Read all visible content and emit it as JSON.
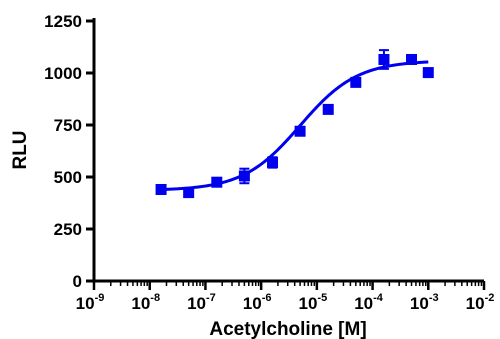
{
  "chart_data": {
    "type": "scatter",
    "xlabel": "Acetylcholine [M]",
    "ylabel": "RLU",
    "xscale": "log",
    "xlim": [
      1e-09,
      0.01
    ],
    "ylim": [
      0,
      1250
    ],
    "x_ticks": [
      {
        "value": 1e-09,
        "base": "10",
        "exp": "-9"
      },
      {
        "value": 1e-08,
        "base": "10",
        "exp": "-8"
      },
      {
        "value": 1e-07,
        "base": "10",
        "exp": "-7"
      },
      {
        "value": 1e-06,
        "base": "10",
        "exp": "-6"
      },
      {
        "value": 1e-05,
        "base": "10",
        "exp": "-5"
      },
      {
        "value": 0.0001,
        "base": "10",
        "exp": "-4"
      },
      {
        "value": 0.001,
        "base": "10",
        "exp": "-3"
      },
      {
        "value": 0.01,
        "base": "10",
        "exp": "-2"
      }
    ],
    "y_ticks": [
      0,
      250,
      500,
      750,
      1000,
      1250
    ],
    "series": [
      {
        "marker": "square",
        "color": "#0000ee",
        "points": [
          {
            "x": 1.6e-08,
            "y": 440,
            "err": 8
          },
          {
            "x": 5e-08,
            "y": 425,
            "err": 10
          },
          {
            "x": 1.6e-07,
            "y": 475,
            "err": 20
          },
          {
            "x": 5e-07,
            "y": 505,
            "err": 35
          },
          {
            "x": 1.6e-06,
            "y": 570,
            "err": 25
          },
          {
            "x": 5e-06,
            "y": 720,
            "err": 12
          },
          {
            "x": 1.6e-05,
            "y": 825,
            "err": 15
          },
          {
            "x": 5e-05,
            "y": 955,
            "err": 20
          },
          {
            "x": 0.00016,
            "y": 1065,
            "err": 45
          },
          {
            "x": 0.0005,
            "y": 1065,
            "err": 10
          },
          {
            "x": 0.001,
            "y": 1002,
            "err": 8
          }
        ]
      }
    ],
    "fit": {
      "type": "sigmoid",
      "color": "#0000ee",
      "bottom": 435,
      "top": 1060,
      "logEC50": -5.3,
      "hill": 0.85,
      "x_range": [
        1.6e-08,
        0.001
      ]
    },
    "grid": false,
    "legend": "none"
  }
}
